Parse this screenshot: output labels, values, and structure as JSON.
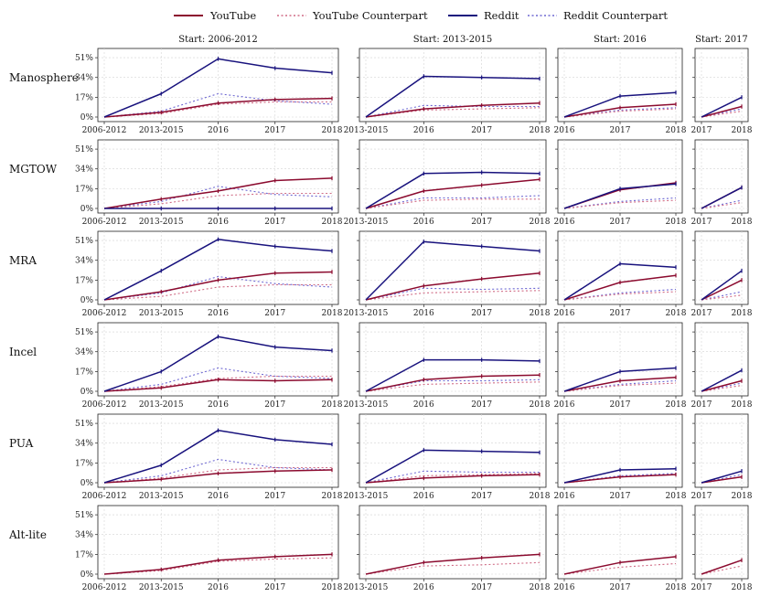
{
  "chart_data": {
    "type": "line",
    "title": "",
    "colors": {
      "youtube": "#8b0a2e",
      "youtube_cf": "#d06c86",
      "reddit": "#18127d",
      "reddit_cf": "#6e68d2"
    },
    "legend": [
      "YouTube",
      "YouTube Counterpart",
      "Reddit",
      "Reddit Counterpart"
    ],
    "legend_position": "top",
    "y_ticks": [
      "0%",
      "17%",
      "34%",
      "51%"
    ],
    "ylim": [
      0,
      55
    ],
    "columns": [
      {
        "title": "Start: 2006-2012",
        "x": [
          "2006-2012",
          "2013-2015",
          "2016",
          "2017",
          "2018"
        ]
      },
      {
        "title": "Start: 2013-2015",
        "x": [
          "2013-2015",
          "2016",
          "2017",
          "2018"
        ]
      },
      {
        "title": "Start: 2016",
        "x": [
          "2016",
          "2017",
          "2018"
        ]
      },
      {
        "title": "Start: 2017",
        "x": [
          "2017",
          "2018"
        ]
      }
    ],
    "rows": [
      {
        "label": "Manosphere",
        "panels": [
          {
            "youtube": [
              0,
              4,
              12,
              15,
              16
            ],
            "youtube_cf": [
              0,
              3,
              11,
              13,
              13
            ],
            "reddit": [
              0,
              20,
              50,
              42,
              38
            ],
            "reddit_cf": [
              0,
              5,
              20,
              14,
              11
            ]
          },
          {
            "youtube": [
              0,
              7,
              10,
              12
            ],
            "youtube_cf": [
              0,
              6,
              7,
              8
            ],
            "reddit": [
              0,
              35,
              34,
              33
            ],
            "reddit_cf": [
              0,
              10,
              9,
              9
            ]
          },
          {
            "youtube": [
              0,
              8,
              11
            ],
            "youtube_cf": [
              0,
              5,
              7
            ],
            "reddit": [
              0,
              18,
              21
            ],
            "reddit_cf": [
              0,
              6,
              8
            ]
          },
          {
            "youtube": [
              0,
              9
            ],
            "youtube_cf": [
              0,
              5
            ],
            "reddit": [
              0,
              17
            ],
            "reddit_cf": [
              0,
              7
            ]
          }
        ]
      },
      {
        "label": "MGTOW",
        "panels": [
          {
            "youtube": [
              0,
              8,
              15,
              24,
              26
            ],
            "youtube_cf": [
              0,
              4,
              11,
              13,
              13
            ],
            "reddit": [
              0,
              0,
              0,
              0,
              0
            ],
            "reddit_cf": [
              0,
              6,
              19,
              12,
              10
            ]
          },
          {
            "youtube": [
              0,
              15,
              20,
              25
            ],
            "youtube_cf": [
              0,
              7,
              8,
              8
            ],
            "reddit": [
              0,
              30,
              31,
              30
            ],
            "reddit_cf": [
              0,
              9,
              9,
              11
            ]
          },
          {
            "youtube": [
              0,
              16,
              22
            ],
            "youtube_cf": [
              0,
              5,
              7
            ],
            "reddit": [
              0,
              17,
              21
            ],
            "reddit_cf": [
              0,
              6,
              9
            ]
          },
          {
            "youtube": [
              0,
              18
            ],
            "youtube_cf": [
              0,
              5
            ],
            "reddit": [
              0,
              18
            ],
            "reddit_cf": [
              0,
              7
            ]
          }
        ]
      },
      {
        "label": "MRA",
        "panels": [
          {
            "youtube": [
              0,
              7,
              17,
              23,
              24
            ],
            "youtube_cf": [
              0,
              3,
              11,
              13,
              13
            ],
            "reddit": [
              0,
              25,
              52,
              46,
              42
            ],
            "reddit_cf": [
              0,
              6,
              20,
              14,
              11
            ]
          },
          {
            "youtube": [
              0,
              12,
              18,
              23
            ],
            "youtube_cf": [
              0,
              6,
              7,
              8
            ],
            "reddit": [
              0,
              50,
              46,
              42
            ],
            "reddit_cf": [
              0,
              10,
              9,
              10
            ]
          },
          {
            "youtube": [
              0,
              15,
              21
            ],
            "youtube_cf": [
              0,
              5,
              7
            ],
            "reddit": [
              0,
              31,
              28
            ],
            "reddit_cf": [
              0,
              6,
              9
            ]
          },
          {
            "youtube": [
              0,
              17
            ],
            "youtube_cf": [
              0,
              4
            ],
            "reddit": [
              0,
              25
            ],
            "reddit_cf": [
              0,
              7
            ]
          }
        ]
      },
      {
        "label": "Incel",
        "panels": [
          {
            "youtube": [
              0,
              3,
              10,
              9,
              10
            ],
            "youtube_cf": [
              0,
              4,
              11,
              13,
              13
            ],
            "reddit": [
              0,
              17,
              47,
              38,
              35
            ],
            "reddit_cf": [
              0,
              6,
              20,
              13,
              11
            ]
          },
          {
            "youtube": [
              0,
              10,
              13,
              14
            ],
            "youtube_cf": [
              0,
              6,
              7,
              8
            ],
            "reddit": [
              0,
              27,
              27,
              26
            ],
            "reddit_cf": [
              0,
              9,
              9,
              10
            ]
          },
          {
            "youtube": [
              0,
              9,
              12
            ],
            "youtube_cf": [
              0,
              5,
              7
            ],
            "reddit": [
              0,
              17,
              20
            ],
            "reddit_cf": [
              0,
              6,
              9
            ]
          },
          {
            "youtube": [
              0,
              9
            ],
            "youtube_cf": [
              0,
              5
            ],
            "reddit": [
              0,
              18
            ],
            "reddit_cf": [
              0,
              7
            ]
          }
        ]
      },
      {
        "label": "PUA",
        "panels": [
          {
            "youtube": [
              0,
              3,
              8,
              10,
              11
            ],
            "youtube_cf": [
              0,
              4,
              11,
              13,
              13
            ],
            "reddit": [
              0,
              15,
              45,
              37,
              33
            ],
            "reddit_cf": [
              0,
              6,
              20,
              13,
              11
            ]
          },
          {
            "youtube": [
              0,
              4,
              6,
              7
            ],
            "youtube_cf": [
              0,
              6,
              7,
              8
            ],
            "reddit": [
              0,
              28,
              27,
              26
            ],
            "reddit_cf": [
              0,
              10,
              9,
              9
            ]
          },
          {
            "youtube": [
              0,
              5,
              7
            ],
            "youtube_cf": [
              0,
              5,
              7
            ],
            "reddit": [
              0,
              11,
              12
            ],
            "reddit_cf": [
              0,
              6,
              8
            ]
          },
          {
            "youtube": [
              0,
              5
            ],
            "youtube_cf": [
              0,
              5
            ],
            "reddit": [
              0,
              10
            ],
            "reddit_cf": [
              0,
              7
            ]
          }
        ]
      },
      {
        "label": "Alt-lite",
        "panels": [
          {
            "youtube": [
              0,
              4,
              12,
              15,
              17
            ],
            "youtube_cf": [
              0,
              3,
              11,
              13,
              14
            ]
          },
          {
            "youtube": [
              0,
              10,
              14,
              17
            ],
            "youtube_cf": [
              0,
              7,
              8,
              10
            ]
          },
          {
            "youtube": [
              0,
              10,
              15
            ],
            "youtube_cf": [
              0,
              6,
              9
            ]
          },
          {
            "youtube": [
              0,
              12
            ],
            "youtube_cf": [
              0,
              7
            ]
          }
        ]
      }
    ]
  }
}
